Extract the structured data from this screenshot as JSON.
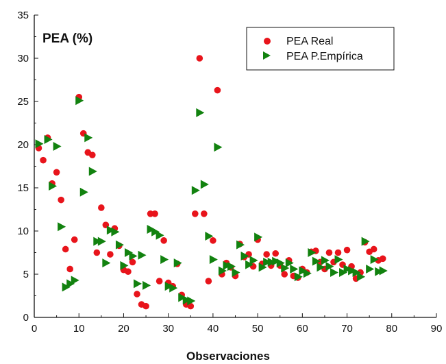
{
  "chart_data": {
    "type": "scatter",
    "title": "PEA (%)",
    "xlabel": "Observaciones",
    "ylabel": "",
    "xlim": [
      0,
      90
    ],
    "ylim": [
      0,
      35
    ],
    "xticks": [
      0,
      10,
      20,
      30,
      40,
      50,
      60,
      70,
      80,
      90
    ],
    "yticks": [
      0,
      5,
      10,
      15,
      20,
      25,
      30,
      35
    ],
    "grid": false,
    "legend_position": "top-right",
    "series": [
      {
        "name": "PEA Real",
        "marker": "circle",
        "color": "#e8141b",
        "points": [
          [
            1,
            19.6
          ],
          [
            2,
            18.2
          ],
          [
            3,
            20.8
          ],
          [
            4,
            15.5
          ],
          [
            5,
            16.8
          ],
          [
            6,
            13.6
          ],
          [
            7,
            7.9
          ],
          [
            8,
            5.6
          ],
          [
            9,
            9.0
          ],
          [
            10,
            25.5
          ],
          [
            11,
            21.3
          ],
          [
            12,
            19.1
          ],
          [
            13,
            18.8
          ],
          [
            14,
            7.5
          ],
          [
            15,
            12.7
          ],
          [
            16,
            10.7
          ],
          [
            17,
            7.3
          ],
          [
            18,
            10.3
          ],
          [
            19,
            8.3
          ],
          [
            20,
            5.5
          ],
          [
            21,
            5.3
          ],
          [
            22,
            6.4
          ],
          [
            23,
            2.7
          ],
          [
            24,
            1.5
          ],
          [
            25,
            1.3
          ],
          [
            26,
            12.0
          ],
          [
            27,
            12.0
          ],
          [
            28,
            4.2
          ],
          [
            29,
            8.9
          ],
          [
            30,
            4.0
          ],
          [
            31,
            3.6
          ],
          [
            32,
            6.2
          ],
          [
            33,
            2.6
          ],
          [
            34,
            1.5
          ],
          [
            35,
            1.3
          ],
          [
            36,
            12.0
          ],
          [
            37,
            30.0
          ],
          [
            38,
            12.0
          ],
          [
            39,
            4.2
          ],
          [
            40,
            8.9
          ],
          [
            41,
            26.3
          ],
          [
            42,
            5.0
          ],
          [
            43,
            6.3
          ],
          [
            44,
            5.8
          ],
          [
            45,
            4.8
          ],
          [
            46,
            8.5
          ],
          [
            47,
            7.0
          ],
          [
            48,
            7.3
          ],
          [
            49,
            5.9
          ],
          [
            50,
            9.0
          ],
          [
            51,
            6.2
          ],
          [
            52,
            7.3
          ],
          [
            53,
            6.0
          ],
          [
            54,
            7.4
          ],
          [
            55,
            6.0
          ],
          [
            56,
            5.0
          ],
          [
            57,
            6.6
          ],
          [
            58,
            4.8
          ],
          [
            59,
            4.6
          ],
          [
            60,
            5.6
          ],
          [
            61,
            5.2
          ],
          [
            62,
            7.6
          ],
          [
            63,
            7.7
          ],
          [
            64,
            6.4
          ],
          [
            65,
            5.6
          ],
          [
            66,
            7.5
          ],
          [
            67,
            6.4
          ],
          [
            68,
            7.5
          ],
          [
            69,
            6.1
          ],
          [
            70,
            7.8
          ],
          [
            71,
            5.9
          ],
          [
            72,
            4.5
          ],
          [
            73,
            5.2
          ],
          [
            74,
            8.7
          ],
          [
            75,
            7.6
          ],
          [
            76,
            7.9
          ],
          [
            77,
            6.6
          ],
          [
            78,
            6.8
          ]
        ]
      },
      {
        "name": "PEA P.Empírica",
        "marker": "triangle-right",
        "color": "#12820f",
        "points": [
          [
            1,
            20.1
          ],
          [
            3,
            20.6
          ],
          [
            4,
            15.2
          ],
          [
            5,
            19.8
          ],
          [
            6,
            10.5
          ],
          [
            7,
            3.5
          ],
          [
            8,
            3.9
          ],
          [
            9,
            4.3
          ],
          [
            10,
            25.1
          ],
          [
            11,
            14.5
          ],
          [
            12,
            20.8
          ],
          [
            13,
            16.9
          ],
          [
            14,
            8.8
          ],
          [
            15,
            8.8
          ],
          [
            16,
            6.3
          ],
          [
            17,
            10.1
          ],
          [
            18,
            9.9
          ],
          [
            19,
            8.4
          ],
          [
            20,
            6.0
          ],
          [
            21,
            7.5
          ],
          [
            22,
            7.1
          ],
          [
            23,
            3.9
          ],
          [
            24,
            7.2
          ],
          [
            25,
            3.7
          ],
          [
            26,
            10.2
          ],
          [
            27,
            9.9
          ],
          [
            28,
            9.5
          ],
          [
            29,
            6.7
          ],
          [
            30,
            3.6
          ],
          [
            31,
            3.4
          ],
          [
            32,
            6.3
          ],
          [
            33,
            2.3
          ],
          [
            34,
            2.0
          ],
          [
            35,
            1.9
          ],
          [
            36,
            14.7
          ],
          [
            37,
            23.7
          ],
          [
            38,
            15.4
          ],
          [
            39,
            9.4
          ],
          [
            40,
            6.7
          ],
          [
            41,
            19.7
          ],
          [
            42,
            5.4
          ],
          [
            43,
            6.0
          ],
          [
            44,
            5.9
          ],
          [
            45,
            5.2
          ],
          [
            46,
            8.4
          ],
          [
            47,
            7.1
          ],
          [
            48,
            6.1
          ],
          [
            49,
            6.6
          ],
          [
            50,
            9.3
          ],
          [
            51,
            5.8
          ],
          [
            52,
            6.4
          ],
          [
            53,
            6.4
          ],
          [
            54,
            6.5
          ],
          [
            55,
            6.3
          ],
          [
            56,
            5.7
          ],
          [
            57,
            6.3
          ],
          [
            58,
            5.6
          ],
          [
            59,
            4.7
          ],
          [
            60,
            5.4
          ],
          [
            61,
            5.1
          ],
          [
            62,
            7.5
          ],
          [
            63,
            6.5
          ],
          [
            64,
            5.8
          ],
          [
            65,
            6.6
          ],
          [
            66,
            5.9
          ],
          [
            67,
            5.2
          ],
          [
            68,
            6.7
          ],
          [
            69,
            5.2
          ],
          [
            70,
            5.6
          ],
          [
            71,
            5.4
          ],
          [
            72,
            5.2
          ],
          [
            73,
            4.7
          ],
          [
            74,
            8.8
          ],
          [
            75,
            5.6
          ],
          [
            76,
            6.7
          ],
          [
            77,
            5.3
          ],
          [
            78,
            5.4
          ]
        ]
      }
    ]
  }
}
